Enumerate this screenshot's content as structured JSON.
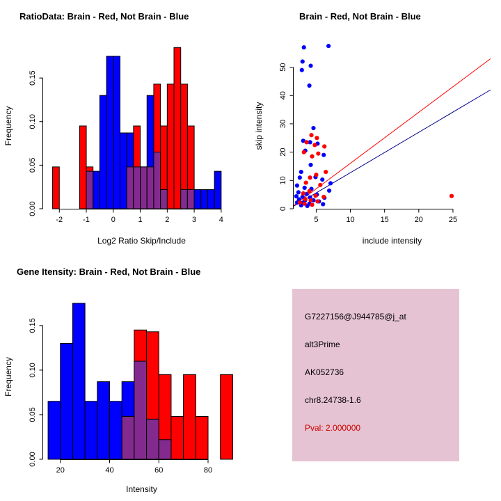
{
  "panels": {
    "info_box": {
      "background": "#e6c3d2",
      "lines": [
        {
          "text": "G7227156@J944785@j_at",
          "color": "#000000"
        },
        {
          "text": "alt3Prime",
          "color": "#000000"
        },
        {
          "text": "AK052736",
          "color": "#000000"
        },
        {
          "text": "chr8.24738-1.6",
          "color": "#000000"
        },
        {
          "text": "Pval: 2.000000",
          "color": "#cc0000"
        }
      ]
    }
  },
  "chart_data": [
    {
      "type": "histogram",
      "title": "RatioData: Brain - Red, Not Brain - Blue",
      "xlabel": "Log2 Ratio Skip/Include",
      "ylabel": "Frequency",
      "xlim": [
        -2.6,
        4.7
      ],
      "ylim": [
        0,
        0.19
      ],
      "xticks": {
        "values": [
          -2,
          -1,
          0,
          1,
          2,
          3,
          4
        ],
        "labels": [
          "-2",
          "-1",
          "0",
          "1",
          "2",
          "3",
          "4"
        ]
      },
      "yticks": {
        "values": [
          0,
          0.05,
          0.1,
          0.15
        ],
        "labels": [
          "0.00",
          "0.05",
          "0.10",
          "0.15"
        ]
      },
      "bin_width": 0.25,
      "colors": {
        "red": "#ff0000",
        "blue": "#0000ff",
        "overlap": "#832a8f"
      },
      "red_bars": [
        [
          -2.25,
          0.048
        ],
        [
          -1.25,
          0.095
        ],
        [
          -1.0,
          0.048
        ],
        [
          0.5,
          0.048
        ],
        [
          0.75,
          0.095
        ],
        [
          1.0,
          0.048
        ],
        [
          1.25,
          0.048
        ],
        [
          1.5,
          0.143
        ],
        [
          1.75,
          0.095
        ],
        [
          2.0,
          0.143
        ],
        [
          2.25,
          0.185
        ],
        [
          2.5,
          0.143
        ],
        [
          2.75,
          0.095
        ]
      ],
      "blue_bars": [
        [
          -1.0,
          0.043
        ],
        [
          -0.75,
          0.043
        ],
        [
          -0.5,
          0.13
        ],
        [
          -0.25,
          0.175
        ],
        [
          0.0,
          0.175
        ],
        [
          0.25,
          0.087
        ],
        [
          0.5,
          0.087
        ],
        [
          0.75,
          0.048
        ],
        [
          1.0,
          0.048
        ],
        [
          1.25,
          0.13
        ],
        [
          1.5,
          0.065
        ],
        [
          1.75,
          0.022
        ],
        [
          2.5,
          0.022
        ],
        [
          2.75,
          0.022
        ],
        [
          3.0,
          0.022
        ],
        [
          3.25,
          0.022
        ],
        [
          3.5,
          0.022
        ],
        [
          3.75,
          0.043
        ]
      ]
    },
    {
      "type": "scatter",
      "title": "Brain - Red, Not Brain - Blue",
      "xlabel": "include intensity",
      "ylabel": "skip intensity",
      "xlim": [
        1.7,
        30.5
      ],
      "ylim": [
        0,
        58.5
      ],
      "xticks": {
        "values": [
          5,
          10,
          15,
          20,
          25
        ],
        "labels": [
          "5",
          "10",
          "15",
          "20",
          "25"
        ]
      },
      "yticks": {
        "values": [
          0,
          10,
          20,
          30,
          40,
          50
        ],
        "labels": [
          "0",
          "10",
          "20",
          "30",
          "40",
          "50"
        ]
      },
      "colors": {
        "red": "#ff0000",
        "blue": "#0000ff",
        "blue_line": "#00008b"
      },
      "red_line": [
        [
          1.7,
          1.1
        ],
        [
          30.5,
          53.0
        ]
      ],
      "blue_line": [
        [
          1.7,
          0.9
        ],
        [
          30.5,
          42.0
        ]
      ],
      "red_points": [
        [
          24.8,
          4.5
        ],
        [
          4.3,
          26.0
        ],
        [
          5.1,
          25.0
        ],
        [
          3.6,
          23.5
        ],
        [
          4.8,
          22.5
        ],
        [
          6.2,
          22.0
        ],
        [
          3.2,
          20.0
        ],
        [
          5.3,
          19.5
        ],
        [
          4.4,
          18.5
        ],
        [
          6.4,
          13.0
        ],
        [
          5.0,
          12.0
        ],
        [
          4.1,
          11.0
        ],
        [
          3.5,
          9.2
        ],
        [
          5.6,
          8.4
        ],
        [
          4.0,
          6.2
        ],
        [
          3.1,
          5.4
        ],
        [
          4.9,
          4.6
        ],
        [
          6.1,
          4.2
        ],
        [
          3.4,
          3.4
        ],
        [
          4.2,
          3.0
        ],
        [
          5.2,
          2.6
        ],
        [
          2.6,
          2.2
        ],
        [
          3.3,
          1.8
        ],
        [
          4.4,
          1.4
        ]
      ],
      "blue_points": [
        [
          3.2,
          57.0
        ],
        [
          6.8,
          57.5
        ],
        [
          3.0,
          52.0
        ],
        [
          4.2,
          50.5
        ],
        [
          2.9,
          49.0
        ],
        [
          4.0,
          43.5
        ],
        [
          4.6,
          28.5
        ],
        [
          3.1,
          24.0
        ],
        [
          4.1,
          23.5
        ],
        [
          5.2,
          23.0
        ],
        [
          3.4,
          20.5
        ],
        [
          6.1,
          19.0
        ],
        [
          4.2,
          15.5
        ],
        [
          2.8,
          13.0
        ],
        [
          2.6,
          11.0
        ],
        [
          4.9,
          11.2
        ],
        [
          5.9,
          10.3
        ],
        [
          7.1,
          9.0
        ],
        [
          2.2,
          8.2
        ],
        [
          3.3,
          7.4
        ],
        [
          4.3,
          7.0
        ],
        [
          6.9,
          6.4
        ],
        [
          2.4,
          5.8
        ],
        [
          3.6,
          5.2
        ],
        [
          5.1,
          5.0
        ],
        [
          2.1,
          4.4
        ],
        [
          3.0,
          4.2
        ],
        [
          4.1,
          4.0
        ],
        [
          6.2,
          3.9
        ],
        [
          2.5,
          3.3
        ],
        [
          3.4,
          3.1
        ],
        [
          4.6,
          3.0
        ],
        [
          5.4,
          2.6
        ],
        [
          2.2,
          2.2
        ],
        [
          3.1,
          2.0
        ],
        [
          4.0,
          1.8
        ],
        [
          6.0,
          1.6
        ],
        [
          2.8,
          1.2
        ],
        [
          3.7,
          1.0
        ]
      ]
    },
    {
      "type": "histogram",
      "title": "Gene Itensity: Brain - Red, Not Brain - Blue",
      "xlabel": "Intensity",
      "ylabel": "Frequency",
      "xlim": [
        13,
        93
      ],
      "ylim": [
        0,
        0.185
      ],
      "xticks": {
        "values": [
          20,
          40,
          60,
          80
        ],
        "labels": [
          "20",
          "40",
          "60",
          "80"
        ]
      },
      "yticks": {
        "values": [
          0,
          0.05,
          0.1,
          0.15
        ],
        "labels": [
          "0.00",
          "0.05",
          "0.10",
          "0.15"
        ]
      },
      "bin_width": 5,
      "colors": {
        "red": "#ff0000",
        "blue": "#0000ff",
        "overlap": "#832a8f"
      },
      "red_bars": [
        [
          45,
          0.048
        ],
        [
          50,
          0.145
        ],
        [
          55,
          0.143
        ],
        [
          60,
          0.095
        ],
        [
          65,
          0.048
        ],
        [
          70,
          0.095
        ],
        [
          75,
          0.048
        ],
        [
          85,
          0.095
        ]
      ],
      "blue_bars": [
        [
          15,
          0.065
        ],
        [
          20,
          0.13
        ],
        [
          25,
          0.175
        ],
        [
          30,
          0.065
        ],
        [
          35,
          0.087
        ],
        [
          40,
          0.065
        ],
        [
          45,
          0.087
        ],
        [
          50,
          0.11
        ],
        [
          55,
          0.045
        ],
        [
          60,
          0.022
        ]
      ]
    }
  ]
}
